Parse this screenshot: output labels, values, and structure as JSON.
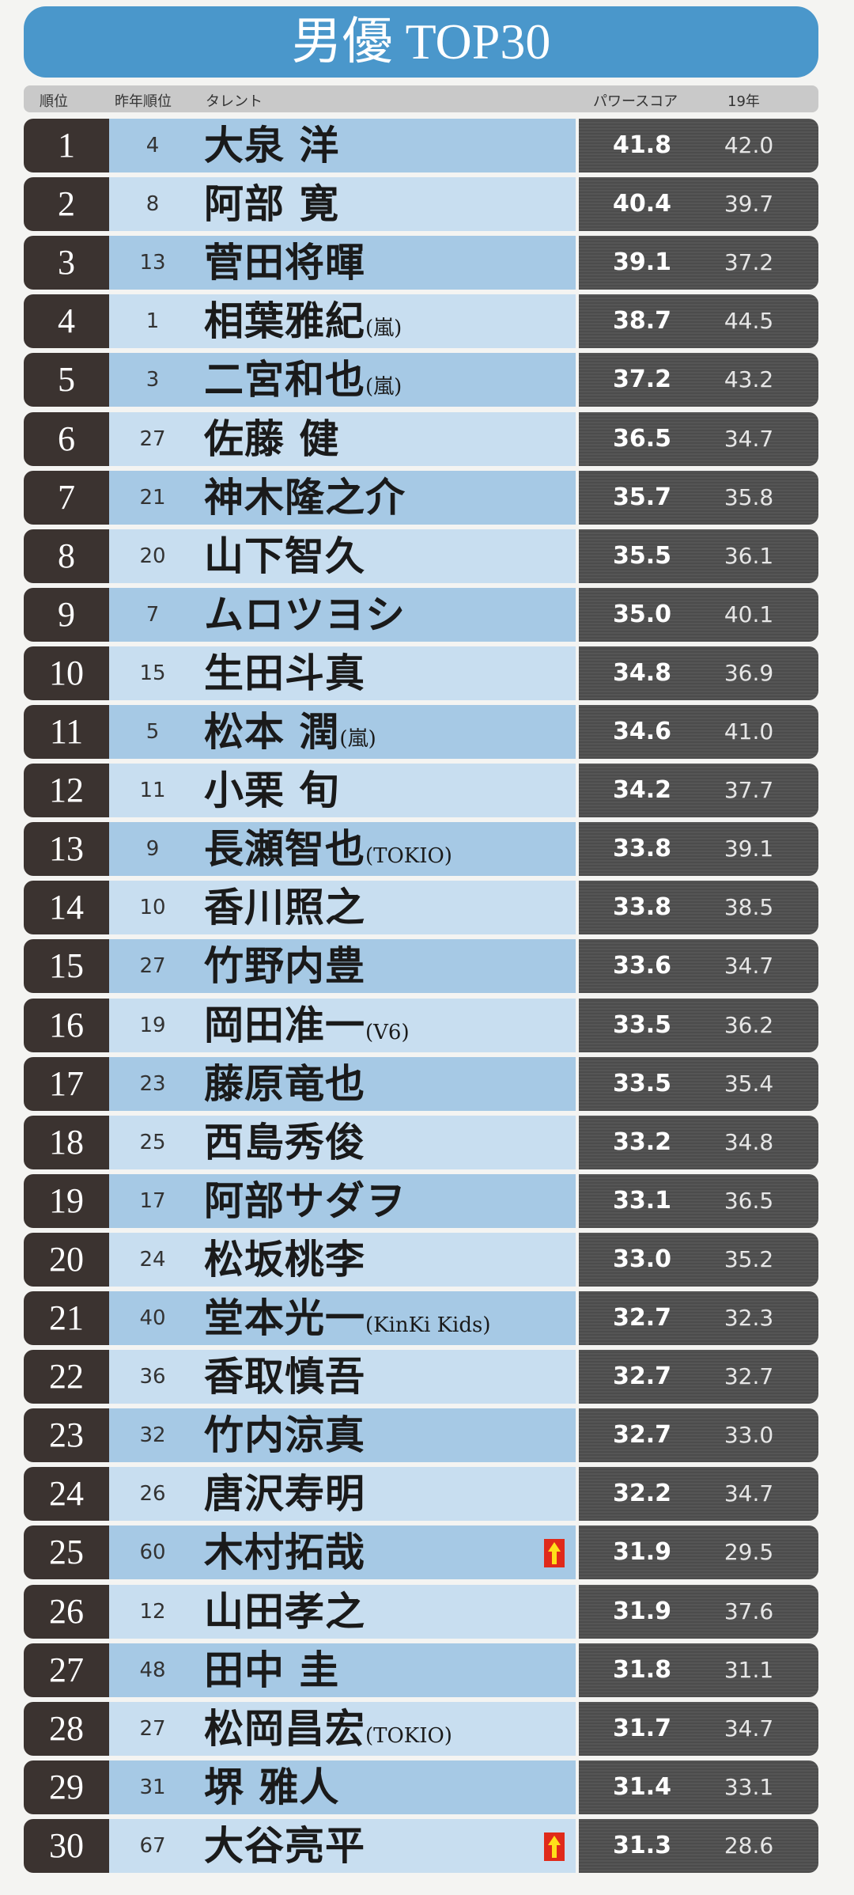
{
  "title": "男優 TOP30",
  "header": {
    "rank": "順位",
    "prev_rank": "昨年順位",
    "talent": "タレント",
    "power_score": "パワースコア",
    "year19": "19年"
  },
  "colors": {
    "title_bg": "#4a97cb",
    "rank_bg": "#3b3330",
    "row_dark": "#a6c9e5",
    "row_light": "#c8def0",
    "score_bg": "#4c4c4c",
    "up_arrow": "#e02a1a"
  },
  "rows": [
    {
      "rank": "1",
      "prev": "4",
      "name": "大泉 洋",
      "group": "",
      "score": "41.8",
      "y19": "42.0",
      "up": false
    },
    {
      "rank": "2",
      "prev": "8",
      "name": "阿部 寛",
      "group": "",
      "score": "40.4",
      "y19": "39.7",
      "up": false
    },
    {
      "rank": "3",
      "prev": "13",
      "name": "菅田将暉",
      "group": "",
      "score": "39.1",
      "y19": "37.2",
      "up": false
    },
    {
      "rank": "4",
      "prev": "1",
      "name": "相葉雅紀",
      "group": "(嵐)",
      "score": "38.7",
      "y19": "44.5",
      "up": false
    },
    {
      "rank": "5",
      "prev": "3",
      "name": "二宮和也",
      "group": "(嵐)",
      "score": "37.2",
      "y19": "43.2",
      "up": false
    },
    {
      "rank": "6",
      "prev": "27",
      "name": "佐藤 健",
      "group": "",
      "score": "36.5",
      "y19": "34.7",
      "up": false
    },
    {
      "rank": "7",
      "prev": "21",
      "name": "神木隆之介",
      "group": "",
      "score": "35.7",
      "y19": "35.8",
      "up": false
    },
    {
      "rank": "8",
      "prev": "20",
      "name": "山下智久",
      "group": "",
      "score": "35.5",
      "y19": "36.1",
      "up": false
    },
    {
      "rank": "9",
      "prev": "7",
      "name": "ムロツヨシ",
      "group": "",
      "score": "35.0",
      "y19": "40.1",
      "up": false
    },
    {
      "rank": "10",
      "prev": "15",
      "name": "生田斗真",
      "group": "",
      "score": "34.8",
      "y19": "36.9",
      "up": false
    },
    {
      "rank": "11",
      "prev": "5",
      "name": "松本 潤",
      "group": "(嵐)",
      "score": "34.6",
      "y19": "41.0",
      "up": false
    },
    {
      "rank": "12",
      "prev": "11",
      "name": "小栗 旬",
      "group": "",
      "score": "34.2",
      "y19": "37.7",
      "up": false
    },
    {
      "rank": "13",
      "prev": "9",
      "name": "長瀬智也",
      "group": "(TOKIO)",
      "score": "33.8",
      "y19": "39.1",
      "up": false
    },
    {
      "rank": "14",
      "prev": "10",
      "name": "香川照之",
      "group": "",
      "score": "33.8",
      "y19": "38.5",
      "up": false
    },
    {
      "rank": "15",
      "prev": "27",
      "name": "竹野内豊",
      "group": "",
      "score": "33.6",
      "y19": "34.7",
      "up": false
    },
    {
      "rank": "16",
      "prev": "19",
      "name": "岡田准一",
      "group": "(V6)",
      "score": "33.5",
      "y19": "36.2",
      "up": false
    },
    {
      "rank": "17",
      "prev": "23",
      "name": "藤原竜也",
      "group": "",
      "score": "33.5",
      "y19": "35.4",
      "up": false
    },
    {
      "rank": "18",
      "prev": "25",
      "name": "西島秀俊",
      "group": "",
      "score": "33.2",
      "y19": "34.8",
      "up": false
    },
    {
      "rank": "19",
      "prev": "17",
      "name": "阿部サダヲ",
      "group": "",
      "score": "33.1",
      "y19": "36.5",
      "up": false
    },
    {
      "rank": "20",
      "prev": "24",
      "name": "松坂桃李",
      "group": "",
      "score": "33.0",
      "y19": "35.2",
      "up": false
    },
    {
      "rank": "21",
      "prev": "40",
      "name": "堂本光一",
      "group": "(KinKi Kids)",
      "score": "32.7",
      "y19": "32.3",
      "up": false
    },
    {
      "rank": "22",
      "prev": "36",
      "name": "香取慎吾",
      "group": "",
      "score": "32.7",
      "y19": "32.7",
      "up": false
    },
    {
      "rank": "23",
      "prev": "32",
      "name": "竹内涼真",
      "group": "",
      "score": "32.7",
      "y19": "33.0",
      "up": false
    },
    {
      "rank": "24",
      "prev": "26",
      "name": "唐沢寿明",
      "group": "",
      "score": "32.2",
      "y19": "34.7",
      "up": false
    },
    {
      "rank": "25",
      "prev": "60",
      "name": "木村拓哉",
      "group": "",
      "score": "31.9",
      "y19": "29.5",
      "up": true
    },
    {
      "rank": "26",
      "prev": "12",
      "name": "山田孝之",
      "group": "",
      "score": "31.9",
      "y19": "37.6",
      "up": false
    },
    {
      "rank": "27",
      "prev": "48",
      "name": "田中 圭",
      "group": "",
      "score": "31.8",
      "y19": "31.1",
      "up": false
    },
    {
      "rank": "28",
      "prev": "27",
      "name": "松岡昌宏",
      "group": "(TOKIO)",
      "score": "31.7",
      "y19": "34.7",
      "up": false
    },
    {
      "rank": "29",
      "prev": "31",
      "name": "堺 雅人",
      "group": "",
      "score": "31.4",
      "y19": "33.1",
      "up": false
    },
    {
      "rank": "30",
      "prev": "67",
      "name": "大谷亮平",
      "group": "",
      "score": "31.3",
      "y19": "28.6",
      "up": true
    }
  ]
}
